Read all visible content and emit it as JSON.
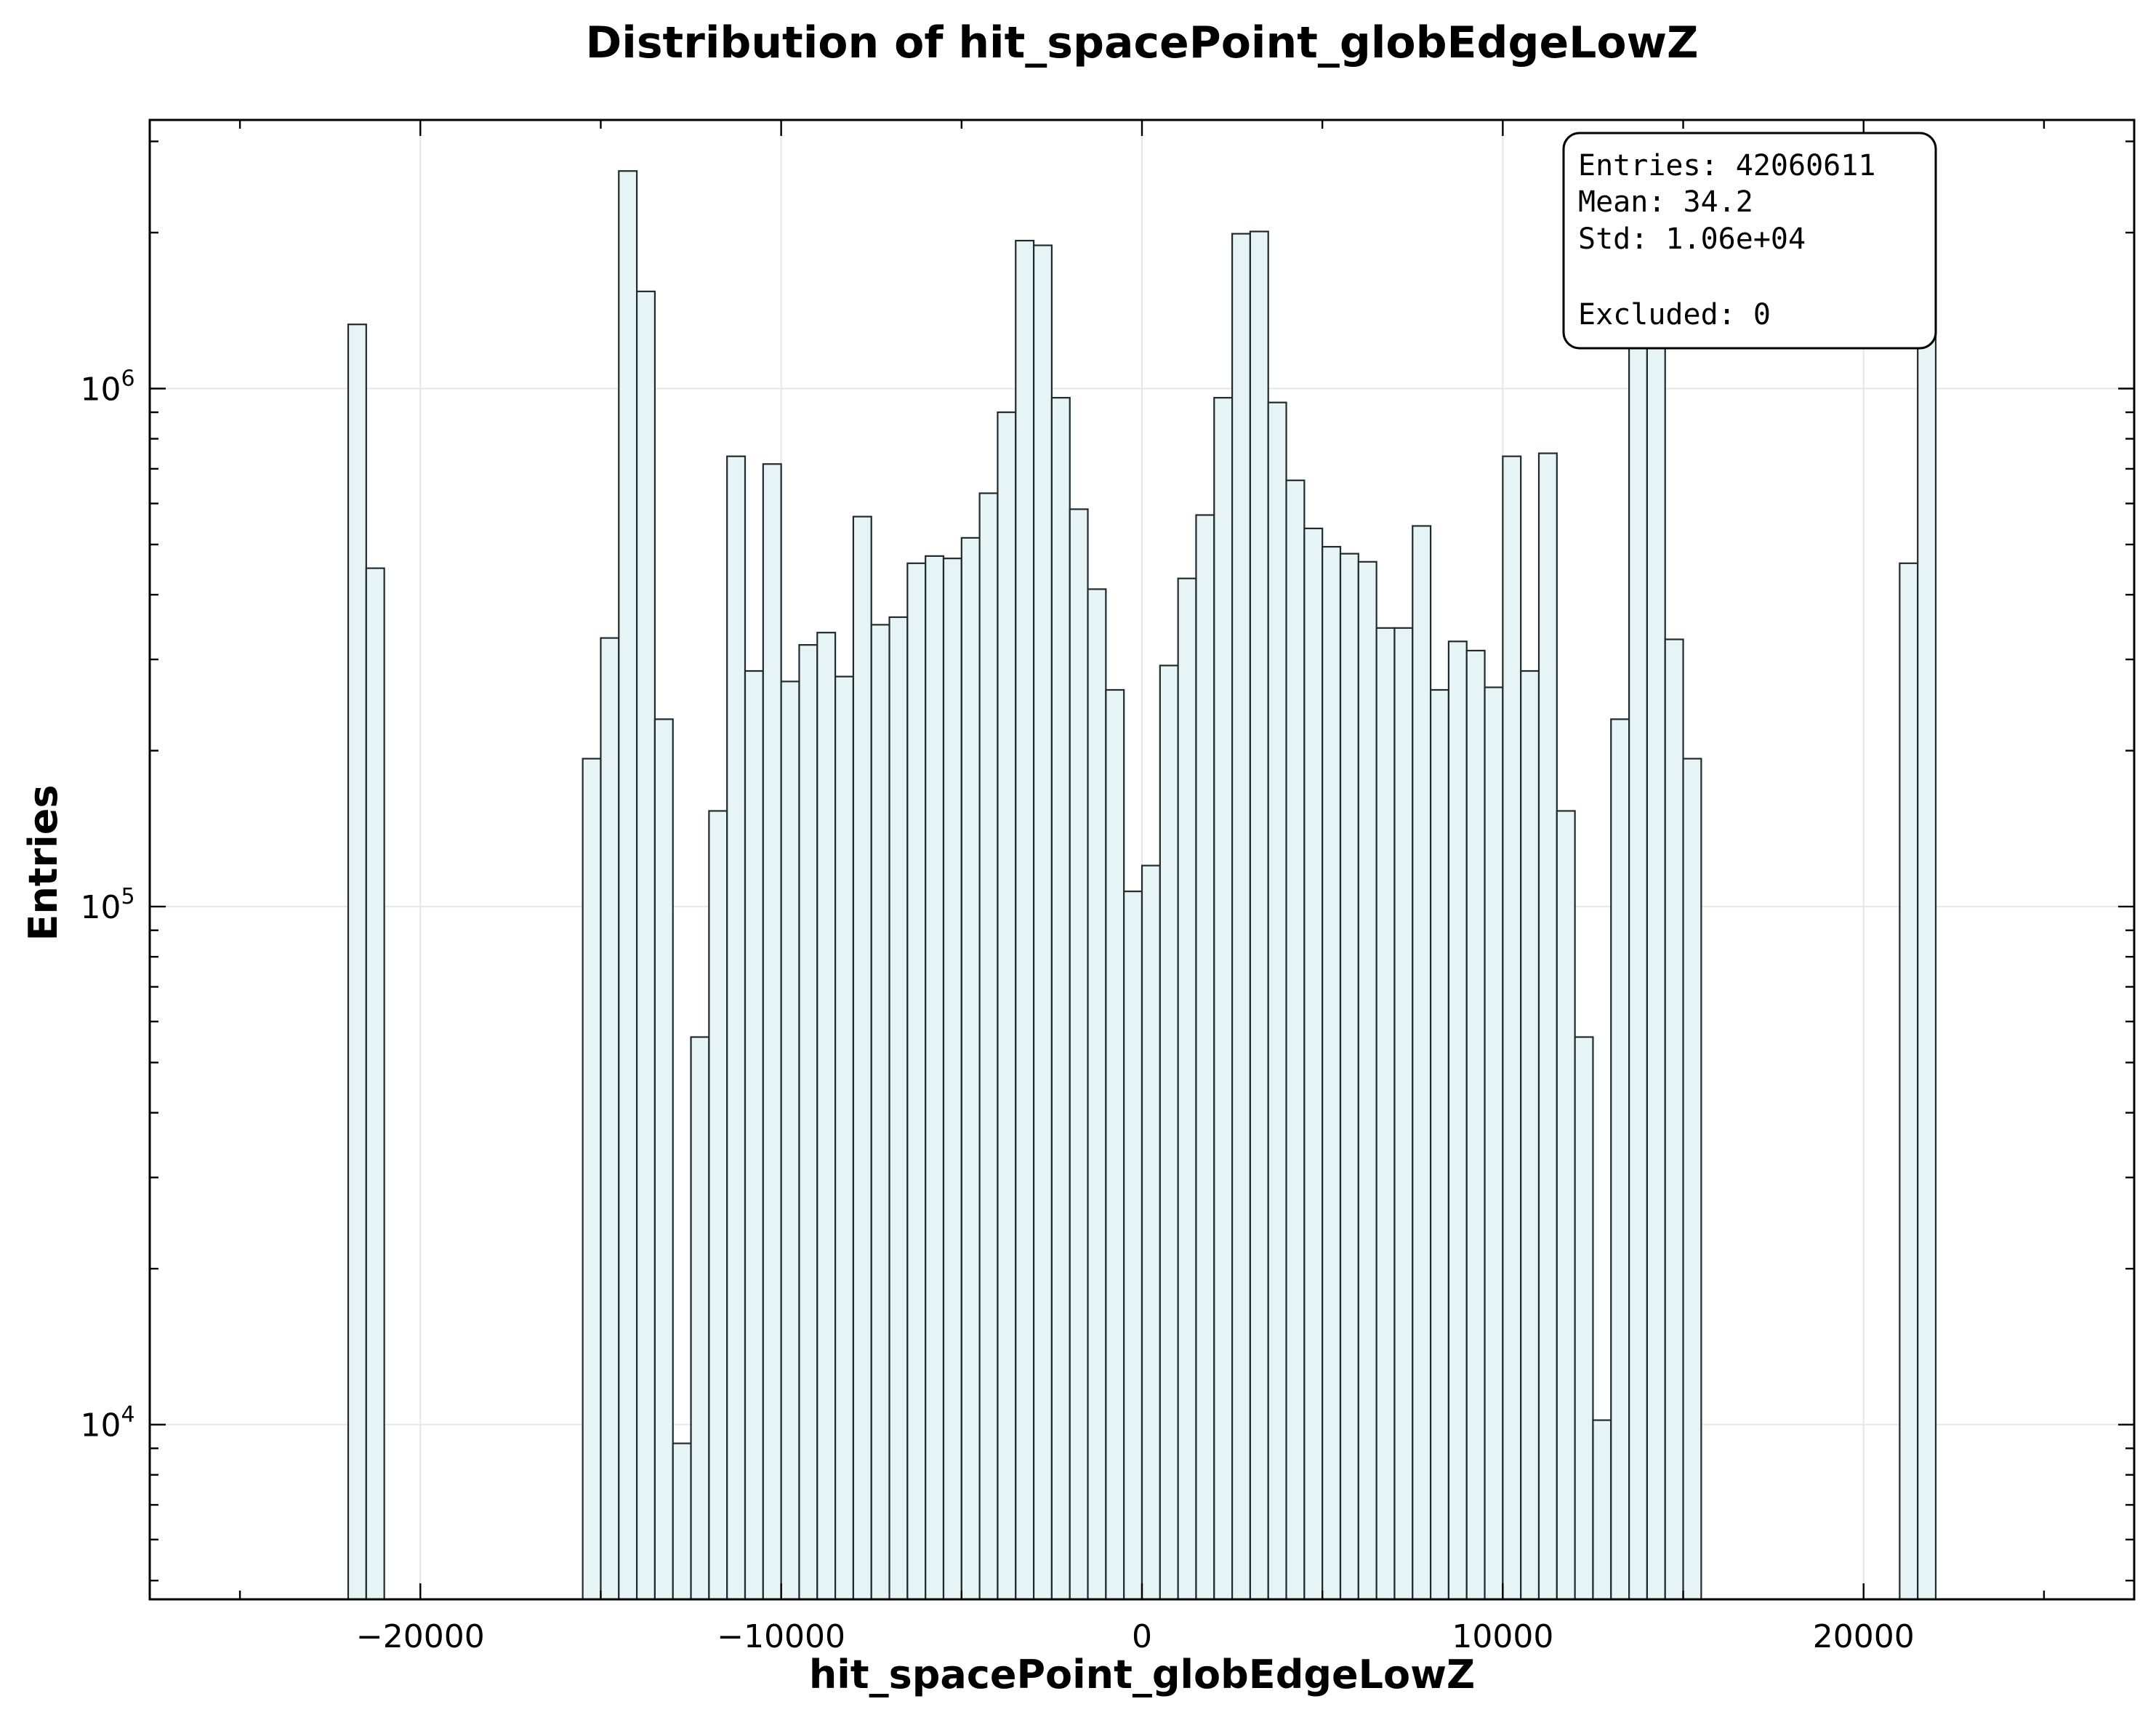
{
  "chart_data": {
    "type": "bar",
    "title": "Distribution of hit_spacePoint_globEdgeLowZ",
    "xlabel": "hit_spacePoint_globEdgeLowZ",
    "ylabel": "Entries",
    "xlim": [
      -27500,
      27500
    ],
    "ylim": [
      4600,
      3300000
    ],
    "yscale": "log",
    "grid": true,
    "bin_width": 500,
    "x_ticks": [
      -20000,
      -10000,
      0,
      10000,
      20000
    ],
    "x_tick_labels": [
      "−20000",
      "−10000",
      "0",
      "10000",
      "20000"
    ],
    "y_ticks": [
      {
        "value": 10000,
        "base": "10",
        "exp": "4"
      },
      {
        "value": 100000,
        "base": "10",
        "exp": "5"
      },
      {
        "value": 1000000,
        "base": "10",
        "exp": "6"
      }
    ],
    "bins": [
      {
        "x": -22000,
        "value": 1330000
      },
      {
        "x": -21500,
        "value": 450000
      },
      {
        "x": -15500,
        "value": 193000
      },
      {
        "x": -15000,
        "value": 330000
      },
      {
        "x": -14500,
        "value": 2630000
      },
      {
        "x": -14000,
        "value": 1540000
      },
      {
        "x": -13500,
        "value": 230000
      },
      {
        "x": -13000,
        "value": 9200
      },
      {
        "x": -12500,
        "value": 56000
      },
      {
        "x": -12000,
        "value": 153000
      },
      {
        "x": -11500,
        "value": 740000
      },
      {
        "x": -11000,
        "value": 285000
      },
      {
        "x": -10500,
        "value": 715000
      },
      {
        "x": -10000,
        "value": 272000
      },
      {
        "x": -9500,
        "value": 320000
      },
      {
        "x": -9000,
        "value": 338000
      },
      {
        "x": -8500,
        "value": 278000
      },
      {
        "x": -8000,
        "value": 566000
      },
      {
        "x": -7500,
        "value": 350000
      },
      {
        "x": -7000,
        "value": 362000
      },
      {
        "x": -6500,
        "value": 460000
      },
      {
        "x": -6000,
        "value": 475000
      },
      {
        "x": -5500,
        "value": 470000
      },
      {
        "x": -5000,
        "value": 515000
      },
      {
        "x": -4500,
        "value": 628000
      },
      {
        "x": -4000,
        "value": 900000
      },
      {
        "x": -3500,
        "value": 1930000
      },
      {
        "x": -3000,
        "value": 1890000
      },
      {
        "x": -2500,
        "value": 960000
      },
      {
        "x": -2000,
        "value": 585000
      },
      {
        "x": -1500,
        "value": 410000
      },
      {
        "x": -1000,
        "value": 262000
      },
      {
        "x": -500,
        "value": 107000
      },
      {
        "x": 0,
        "value": 120000
      },
      {
        "x": 500,
        "value": 292000
      },
      {
        "x": 1000,
        "value": 430000
      },
      {
        "x": 1500,
        "value": 570000
      },
      {
        "x": 2000,
        "value": 960000
      },
      {
        "x": 2500,
        "value": 1990000
      },
      {
        "x": 3000,
        "value": 2010000
      },
      {
        "x": 3500,
        "value": 940000
      },
      {
        "x": 4000,
        "value": 665000
      },
      {
        "x": 4500,
        "value": 537000
      },
      {
        "x": 5000,
        "value": 495000
      },
      {
        "x": 5500,
        "value": 480000
      },
      {
        "x": 6000,
        "value": 463000
      },
      {
        "x": 6500,
        "value": 345000
      },
      {
        "x": 7000,
        "value": 345000
      },
      {
        "x": 7500,
        "value": 543000
      },
      {
        "x": 8000,
        "value": 262000
      },
      {
        "x": 8500,
        "value": 325000
      },
      {
        "x": 9000,
        "value": 312000
      },
      {
        "x": 9500,
        "value": 265000
      },
      {
        "x": 10000,
        "value": 740000
      },
      {
        "x": 10500,
        "value": 285000
      },
      {
        "x": 11000,
        "value": 750000
      },
      {
        "x": 11500,
        "value": 153000
      },
      {
        "x": 12000,
        "value": 56000
      },
      {
        "x": 12500,
        "value": 10200
      },
      {
        "x": 13000,
        "value": 230000
      },
      {
        "x": 13500,
        "value": 1540000
      },
      {
        "x": 14000,
        "value": 2620000
      },
      {
        "x": 14500,
        "value": 328000
      },
      {
        "x": 15000,
        "value": 193000
      },
      {
        "x": 21000,
        "value": 460000
      },
      {
        "x": 21500,
        "value": 1320000
      }
    ]
  },
  "stats_box": {
    "lines": [
      "Entries: 42060611",
      "Mean: 34.2",
      "Std: 1.06e+04",
      "",
      "Excluded: 0"
    ]
  }
}
